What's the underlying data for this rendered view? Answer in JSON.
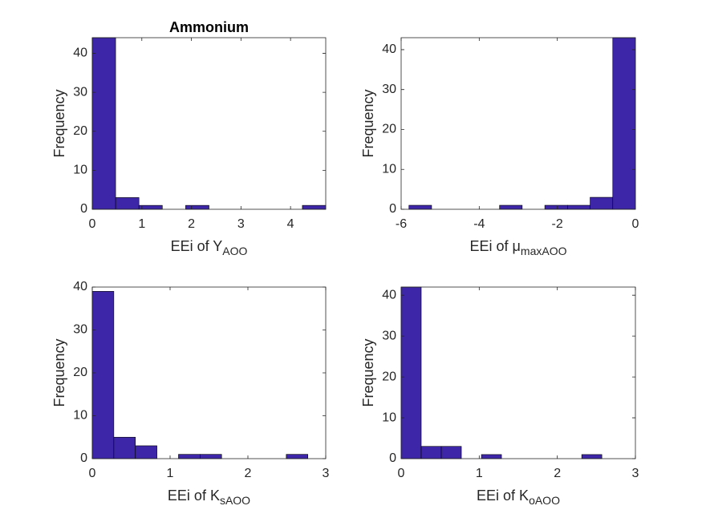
{
  "chart_data": [
    {
      "type": "histogram",
      "title": "Ammonium",
      "x_label": {
        "text": "EEi of Y",
        "subscript": "AOO"
      },
      "y_label": "Frequency",
      "bins": [
        0,
        0.471,
        0.942,
        1.413,
        1.884,
        2.355,
        2.826,
        3.297,
        3.768,
        4.239,
        4.71
      ],
      "values": [
        44,
        3,
        1,
        0,
        1,
        0,
        0,
        0,
        0,
        1
      ],
      "color": "#3d26a8",
      "xlim": [
        0,
        4.71
      ],
      "xticks": [
        0,
        1,
        2,
        3,
        4
      ],
      "ylim": [
        0,
        44
      ],
      "yticks": [
        0,
        10,
        20,
        30,
        40
      ]
    },
    {
      "type": "histogram",
      "x_label": {
        "text": "EEi of μ",
        "subscript": "maxAOO"
      },
      "y_label": "Frequency",
      "bins": [
        -5.8,
        -5.22,
        -4.64,
        -4.06,
        -3.48,
        -2.9,
        -2.32,
        -1.74,
        -1.16,
        -0.58,
        0
      ],
      "values": [
        1,
        0,
        0,
        0,
        1,
        0,
        1,
        1,
        3,
        43
      ],
      "color": "#3d26a8",
      "xlim": [
        -6,
        0
      ],
      "xticks": [
        -6,
        -4,
        -2,
        0
      ],
      "ylim": [
        0,
        43
      ],
      "yticks": [
        0,
        10,
        20,
        30,
        40
      ]
    },
    {
      "type": "histogram",
      "x_label": {
        "text": "EEi of K",
        "subscript": "sAOO"
      },
      "y_label": "Frequency",
      "bins": [
        0,
        0.277,
        0.554,
        0.831,
        1.108,
        1.385,
        1.662,
        1.939,
        2.216,
        2.493,
        2.77
      ],
      "values": [
        39,
        5,
        3,
        0,
        1,
        1,
        0,
        0,
        0,
        1
      ],
      "color": "#3d26a8",
      "xlim": [
        0,
        3
      ],
      "xticks": [
        0,
        1,
        2,
        3
      ],
      "ylim": [
        0,
        40
      ],
      "yticks": [
        0,
        10,
        20,
        30,
        40
      ]
    },
    {
      "type": "histogram",
      "x_label": {
        "text": "EEi of K",
        "subscript": "oAOO"
      },
      "y_label": "Frequency",
      "bins": [
        0,
        0.257,
        0.514,
        0.771,
        1.028,
        1.285,
        1.542,
        1.799,
        2.056,
        2.313,
        2.57
      ],
      "values": [
        42,
        3,
        3,
        0,
        1,
        0,
        0,
        0,
        0,
        1
      ],
      "color": "#3d26a8",
      "xlim": [
        0,
        3
      ],
      "xticks": [
        0,
        1,
        2,
        3
      ],
      "ylim": [
        0,
        42
      ],
      "yticks": [
        0,
        10,
        20,
        30,
        40
      ]
    }
  ]
}
